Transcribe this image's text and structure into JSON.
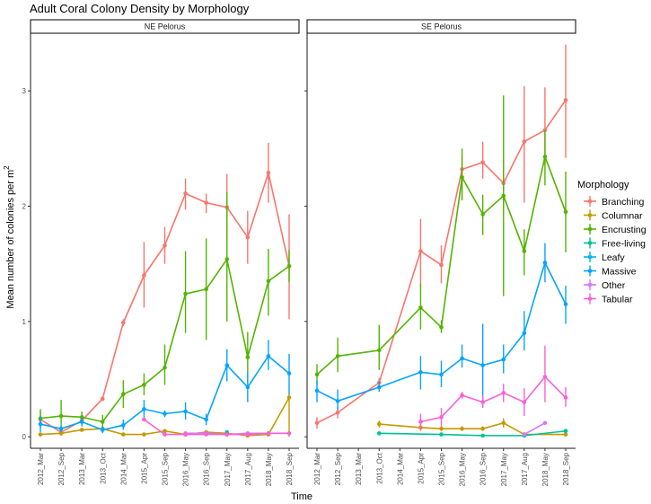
{
  "chart_data": {
    "type": "line",
    "title": "Adult Coral Colony Density by Morphology",
    "xlabel": "Time",
    "ylabel_prefix": "Mean number of colonies per m",
    "ylabel_superscript": "2",
    "ylim": [
      -0.1,
      3.5
    ],
    "y_ticks": [
      0,
      1,
      2,
      3
    ],
    "grid": false,
    "legend_placement": "right",
    "legend_title": "Morphology",
    "categories": [
      "2012_Mar",
      "2012_Sep",
      "2013_Mar",
      "2013_Oct",
      "2014_Mar",
      "2015_Apr",
      "2015_Sep",
      "2016_May",
      "2016_Sep",
      "2017_May",
      "2017_Aug",
      "2018_May",
      "2018_Sep"
    ],
    "morphologies": [
      {
        "name": "Branching",
        "color": "#F8766D"
      },
      {
        "name": "Columnar",
        "color": "#C49A00"
      },
      {
        "name": "Encrusting",
        "color": "#53B400"
      },
      {
        "name": "Free-living",
        "color": "#00C094"
      },
      {
        "name": "Leafy",
        "color": "#00B6EB"
      },
      {
        "name": "Massive",
        "color": "#06A4FF"
      },
      {
        "name": "Other",
        "color": "#D575FE"
      },
      {
        "name": "Tabular",
        "color": "#FB61D7"
      }
    ],
    "facets": [
      {
        "label": "NE Pelorus",
        "series": [
          {
            "name": "Branching",
            "values": [
              0.15,
              0.04,
              0.14,
              0.33,
              0.99,
              1.4,
              1.66,
              2.11,
              2.03,
              1.99,
              1.73,
              2.29,
              1.48
            ],
            "lo": [
              0.08,
              0.01,
              0.1,
              0.31,
              0.96,
              1.12,
              1.5,
              1.97,
              1.94,
              1.7,
              1.5,
              2.03,
              1.02
            ],
            "hi": [
              0.22,
              0.06,
              0.19,
              0.35,
              1.02,
              1.69,
              1.82,
              2.24,
              2.11,
              2.28,
              1.96,
              2.55,
              1.93
            ]
          },
          {
            "name": "Columnar",
            "values": [
              0.02,
              0.03,
              0.06,
              0.07,
              0.02,
              0.02,
              0.05,
              0.02,
              0.04,
              0.03,
              0.01,
              0.02,
              0.34
            ],
            "lo": [
              0.01,
              0.02,
              0.05,
              0.06,
              0.01,
              0.01,
              0.04,
              0.01,
              0.03,
              0.02,
              0.0,
              0.01,
              0.0
            ],
            "hi": [
              0.03,
              0.04,
              0.07,
              0.08,
              0.03,
              0.03,
              0.06,
              0.03,
              0.05,
              0.04,
              0.02,
              0.03,
              0.38
            ]
          },
          {
            "name": "Encrusting",
            "values": [
              0.16,
              0.18,
              0.17,
              0.13,
              0.37,
              0.45,
              0.6,
              1.24,
              1.28,
              1.54,
              0.69,
              1.35,
              1.48
            ],
            "lo": [
              0.08,
              0.1,
              0.12,
              0.07,
              0.25,
              0.36,
              0.45,
              0.9,
              0.84,
              1.0,
              0.47,
              1.05,
              1.34
            ],
            "hi": [
              0.24,
              0.32,
              0.22,
              0.19,
              0.49,
              0.55,
              0.8,
              1.61,
              1.72,
              2.12,
              0.91,
              1.63,
              1.62
            ]
          },
          {
            "name": "Free-living",
            "values": [
              null,
              null,
              null,
              null,
              null,
              null,
              null,
              null,
              null,
              0.04,
              null,
              null,
              null
            ]
          },
          {
            "name": "Massive",
            "values": [
              0.11,
              0.07,
              0.13,
              0.06,
              0.1,
              0.24,
              0.2,
              0.22,
              0.15,
              0.62,
              0.43,
              0.7,
              0.55
            ],
            "lo": [
              0.04,
              0.04,
              0.09,
              0.03,
              0.06,
              0.17,
              0.17,
              0.15,
              0.1,
              0.48,
              0.3,
              0.58,
              0.37
            ],
            "hi": [
              0.18,
              0.1,
              0.17,
              0.09,
              0.15,
              0.32,
              0.23,
              0.3,
              0.2,
              0.76,
              0.56,
              0.84,
              0.72
            ]
          },
          {
            "name": "Other",
            "values": [
              null,
              null,
              null,
              null,
              null,
              null,
              null,
              0.03,
              0.03,
              0.02,
              0.03,
              0.03,
              null
            ]
          },
          {
            "name": "Tabular",
            "values": [
              null,
              null,
              null,
              null,
              null,
              0.15,
              0.02,
              0.02,
              0.02,
              0.02,
              0.02,
              0.03,
              0.03
            ]
          }
        ]
      },
      {
        "label": "SE Pelorus",
        "series": [
          {
            "name": "Branching",
            "values": [
              0.12,
              0.21,
              null,
              0.47,
              null,
              1.61,
              1.49,
              2.32,
              2.38,
              2.2,
              2.56,
              2.66,
              2.92
            ],
            "lo": [
              0.07,
              0.16,
              null,
              0.43,
              null,
              1.3,
              1.33,
              2.06,
              2.24,
              1.98,
              2.03,
              2.36,
              2.42
            ],
            "hi": [
              0.17,
              0.26,
              null,
              0.51,
              null,
              1.89,
              1.66,
              2.43,
              2.56,
              2.42,
              3.04,
              3.03,
              3.4
            ]
          },
          {
            "name": "Columnar",
            "values": [
              null,
              null,
              null,
              0.11,
              null,
              0.08,
              0.07,
              0.07,
              0.07,
              0.12,
              0.02,
              null,
              0.02
            ],
            "lo": [
              null,
              null,
              null,
              0.08,
              null,
              0.05,
              0.05,
              0.05,
              0.05,
              0.08,
              0.01,
              null,
              0.01
            ],
            "hi": [
              null,
              null,
              null,
              0.14,
              null,
              0.11,
              0.09,
              0.09,
              0.09,
              0.16,
              0.03,
              null,
              0.03
            ]
          },
          {
            "name": "Encrusting",
            "values": [
              0.54,
              0.7,
              null,
              0.75,
              null,
              1.12,
              0.95,
              2.25,
              1.93,
              2.09,
              1.61,
              2.43,
              1.95
            ],
            "lo": [
              0.45,
              0.56,
              null,
              0.58,
              null,
              0.93,
              0.9,
              2.05,
              1.75,
              1.22,
              1.4,
              2.18,
              1.6
            ],
            "hi": [
              0.63,
              0.86,
              null,
              0.97,
              null,
              1.33,
              1.01,
              2.5,
              2.1,
              2.96,
              1.8,
              2.66,
              2.3
            ]
          },
          {
            "name": "Free-living",
            "values": [
              null,
              null,
              null,
              0.03,
              null,
              null,
              0.02,
              null,
              0.01,
              null,
              0.01,
              null,
              0.05
            ]
          },
          {
            "name": "Massive",
            "values": [
              0.4,
              0.31,
              null,
              0.43,
              null,
              0.56,
              0.54,
              0.68,
              0.62,
              0.67,
              0.9,
              1.51,
              1.15
            ],
            "lo": [
              0.3,
              0.23,
              null,
              0.39,
              null,
              0.41,
              0.43,
              0.6,
              0.26,
              0.55,
              0.75,
              1.34,
              0.98
            ],
            "hi": [
              0.49,
              0.41,
              null,
              0.48,
              null,
              0.7,
              0.66,
              0.8,
              0.98,
              0.8,
              1.09,
              1.68,
              1.31
            ]
          },
          {
            "name": "Other",
            "values": [
              null,
              null,
              null,
              null,
              null,
              null,
              null,
              null,
              null,
              null,
              0.02,
              0.12,
              null
            ]
          },
          {
            "name": "Tabular",
            "values": [
              null,
              null,
              null,
              null,
              null,
              0.13,
              0.17,
              0.36,
              0.3,
              0.38,
              0.3,
              0.52,
              0.34
            ],
            "lo": [
              null,
              null,
              null,
              null,
              null,
              0.06,
              0.09,
              0.33,
              0.25,
              0.3,
              0.18,
              0.3,
              0.26
            ],
            "hi": [
              null,
              null,
              null,
              null,
              null,
              0.2,
              0.25,
              0.39,
              0.36,
              0.46,
              0.42,
              0.79,
              0.43
            ]
          }
        ]
      }
    ]
  }
}
